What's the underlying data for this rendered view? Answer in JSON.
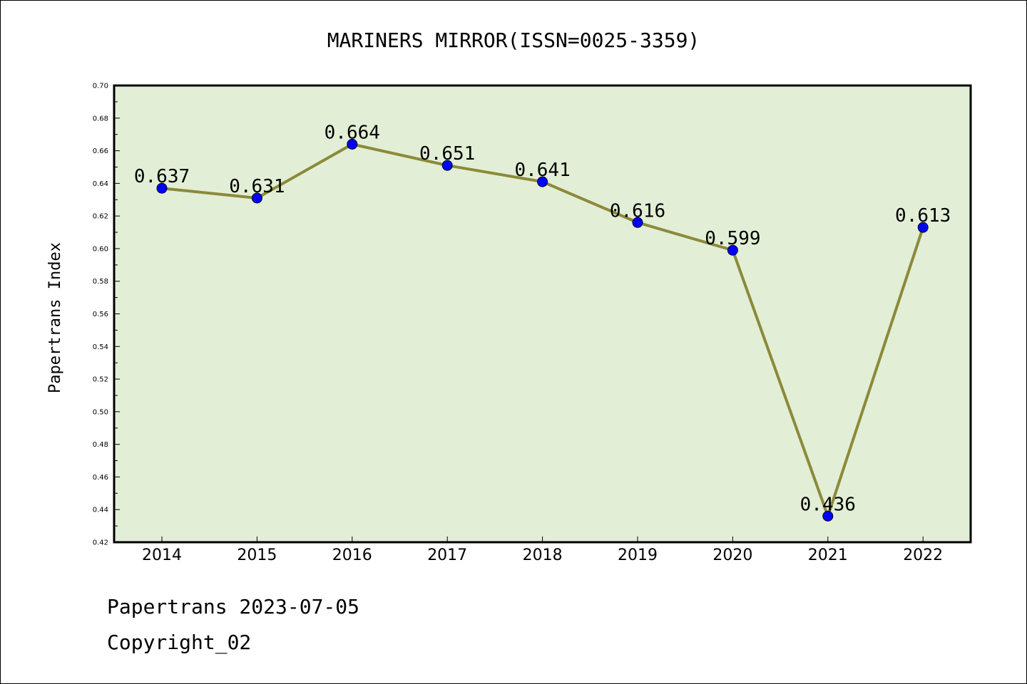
{
  "chart_data": {
    "type": "line",
    "title": "MARINERS MIRROR(ISSN=0025-3359)",
    "xlabel": "",
    "ylabel": "Papertrans Index",
    "categories": [
      "2014",
      "2015",
      "2016",
      "2017",
      "2018",
      "2019",
      "2020",
      "2021",
      "2022"
    ],
    "series": [
      {
        "values": [
          0.637,
          0.631,
          0.664,
          0.651,
          0.641,
          0.616,
          0.599,
          0.436,
          0.613
        ],
        "labels": [
          "0.637",
          "0.631",
          "0.664",
          "0.651",
          "0.641",
          "0.616",
          "0.599",
          "0.436",
          "0.613"
        ],
        "line_color": "#8b8a3a",
        "marker_color": "#0000ff"
      }
    ],
    "ylim": [
      0.42,
      0.7
    ],
    "yticks": [
      "0.42",
      "0.44",
      "0.46",
      "0.48",
      "0.50",
      "0.52",
      "0.54",
      "0.56",
      "0.58",
      "0.60",
      "0.62",
      "0.64",
      "0.66",
      "0.68",
      "0.70"
    ],
    "plot_background": "#e2efd6",
    "grid": false,
    "legend": "none"
  },
  "footer": {
    "line1": "Papertrans 2023-07-05",
    "line2": "Copyright_02"
  }
}
